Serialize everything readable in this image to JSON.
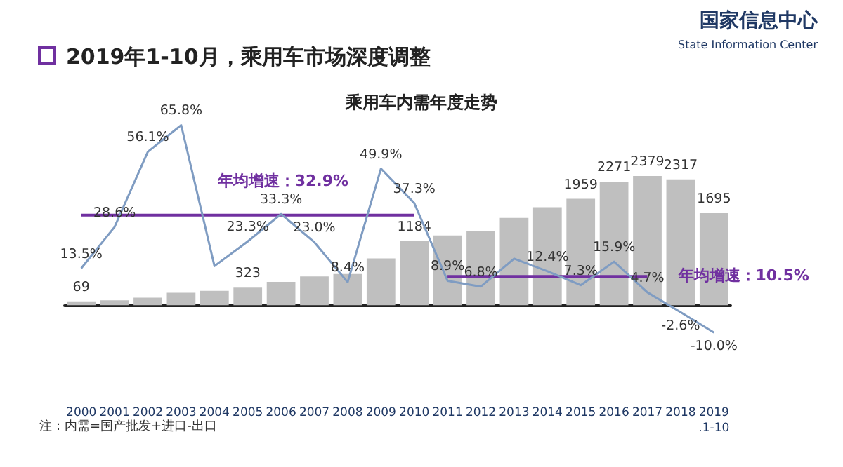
{
  "chart_data": {
    "type": "bar",
    "title": "2019年1-10月，乘用车市场深度调整",
    "subtitle": "乘用车内需年度走势",
    "annotations": [
      "注：内需=国产批发+进口-出口",
      "国家信息中心",
      "State Information Center"
    ],
    "categories": [
      "2000",
      "2001",
      "2002",
      "2003",
      "2004",
      "2005",
      "2006",
      "2007",
      "2008",
      "2009",
      "2010",
      "2011",
      "2012",
      "2013",
      "2014",
      "2015",
      "2016",
      "2017",
      "2018",
      "2019.1-10"
    ],
    "tick_labels": "x",
    "legend": false,
    "grid": false,
    "marker": "none",
    "line_style": "solid",
    "series": [
      {
        "color": "#bfbfbf",
        "values": [
          69,
          89,
          139,
          230,
          263,
          323,
          430,
          529,
          574,
          860,
          1184,
          1286,
          1373,
          1607,
          1806,
          1959,
          2271,
          2379,
          2317,
          1695
        ],
        "value_labels": [
          "69",
          null,
          null,
          null,
          null,
          "323",
          null,
          null,
          null,
          null,
          "1184",
          null,
          null,
          null,
          null,
          "1959",
          "2271",
          "2379",
          "2317",
          "1695"
        ]
      },
      {
        "type": "line",
        "axis": "y2",
        "color": "#7f9cc2",
        "values": [
          13.5,
          28.6,
          56.1,
          65.8,
          14.3,
          23.3,
          33.3,
          23.0,
          8.4,
          49.9,
          37.3,
          8.9,
          6.8,
          17.0,
          12.4,
          7.3,
          15.9,
          4.7,
          -2.6,
          -10.0
        ],
        "value_labels": [
          "13.5%",
          "28.6%",
          "56.1%",
          "65.8%",
          null,
          "23.3%",
          "33.3%",
          "23.0%",
          "8.4%",
          "49.9%",
          "37.3%",
          "8.9%",
          "6.8%",
          null,
          "12.4%",
          "7.3%",
          "15.9%",
          "4.7%",
          "-2.6%",
          "-10.0%"
        ]
      },
      {
        "type": "line",
        "axis": "y2",
        "name": "年均增速：32.9%",
        "color": "#7030a0",
        "values": [
          32.9,
          32.9,
          32.9,
          32.9,
          32.9,
          32.9,
          32.9,
          32.9,
          32.9,
          32.9,
          32.9,
          null,
          null,
          null,
          null,
          null,
          null,
          null,
          null,
          null
        ]
      },
      {
        "type": "line",
        "axis": "y2",
        "name": "年均增速：10.5%",
        "color": "#7030a0",
        "values": [
          null,
          null,
          null,
          null,
          null,
          null,
          null,
          null,
          null,
          null,
          null,
          10.5,
          10.5,
          10.5,
          10.5,
          10.5,
          10.5,
          10.5,
          null,
          null
        ]
      }
    ]
  }
}
